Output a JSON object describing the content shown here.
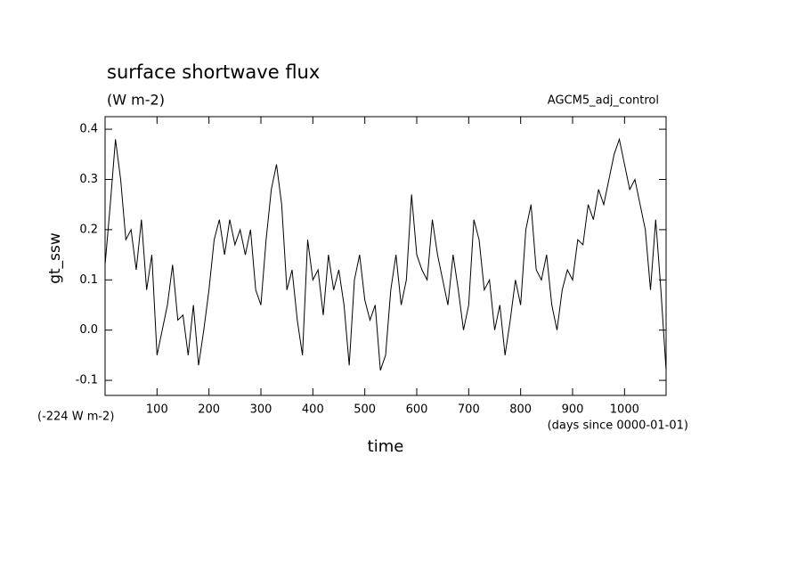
{
  "chart_data": {
    "type": "line",
    "title": "surface shortwave flux",
    "subtitle": "(W m-2)",
    "annotation": "AGCM5_adj_control",
    "offset_label": "(-224 W m-2)",
    "x_units": "(days since 0000-01-01)",
    "xlabel": "time",
    "ylabel": "gt_ssw",
    "xlim": [
      0,
      1080
    ],
    "ylim": [
      -0.13,
      0.425
    ],
    "xticks": [
      100,
      200,
      300,
      400,
      500,
      600,
      700,
      800,
      900,
      1000
    ],
    "yticks": [
      -0.1,
      {
        "value": 0,
        "label": "0.0"
      },
      0.1,
      0.2,
      0.3,
      0.4
    ],
    "x": [
      0,
      10,
      20,
      30,
      40,
      50,
      60,
      70,
      80,
      90,
      100,
      110,
      120,
      130,
      140,
      150,
      160,
      170,
      180,
      190,
      200,
      210,
      220,
      230,
      240,
      250,
      260,
      270,
      280,
      290,
      300,
      310,
      320,
      330,
      340,
      350,
      360,
      370,
      380,
      390,
      400,
      410,
      420,
      430,
      440,
      450,
      460,
      470,
      480,
      490,
      500,
      510,
      520,
      530,
      540,
      550,
      560,
      570,
      580,
      590,
      600,
      610,
      620,
      630,
      640,
      650,
      660,
      670,
      680,
      690,
      700,
      710,
      720,
      730,
      740,
      750,
      760,
      770,
      780,
      790,
      800,
      810,
      820,
      830,
      840,
      850,
      860,
      870,
      880,
      890,
      900,
      910,
      920,
      930,
      940,
      950,
      960,
      970,
      980,
      990,
      1000,
      1010,
      1020,
      1030,
      1040,
      1050,
      1060,
      1070,
      1080
    ],
    "series": [
      {
        "name": "gt_ssw",
        "color": "#000000",
        "values": [
          0.13,
          0.25,
          0.38,
          0.3,
          0.18,
          0.2,
          0.12,
          0.22,
          0.08,
          0.15,
          -0.05,
          0.0,
          0.05,
          0.13,
          0.02,
          0.03,
          -0.05,
          0.05,
          -0.07,
          0.0,
          0.08,
          0.18,
          0.22,
          0.15,
          0.22,
          0.17,
          0.2,
          0.15,
          0.2,
          0.08,
          0.05,
          0.18,
          0.28,
          0.33,
          0.25,
          0.08,
          0.12,
          0.02,
          -0.05,
          0.18,
          0.1,
          0.12,
          0.03,
          0.15,
          0.08,
          0.12,
          0.05,
          -0.07,
          0.1,
          0.15,
          0.06,
          0.02,
          0.05,
          -0.08,
          -0.05,
          0.08,
          0.15,
          0.05,
          0.1,
          0.27,
          0.15,
          0.12,
          0.1,
          0.22,
          0.15,
          0.1,
          0.05,
          0.15,
          0.08,
          0.0,
          0.05,
          0.22,
          0.18,
          0.08,
          0.1,
          0.0,
          0.05,
          -0.05,
          0.02,
          0.1,
          0.05,
          0.2,
          0.25,
          0.12,
          0.1,
          0.15,
          0.05,
          0.0,
          0.08,
          0.12,
          0.1,
          0.18,
          0.17,
          0.25,
          0.22,
          0.28,
          0.25,
          0.3,
          0.35,
          0.38,
          0.33,
          0.28,
          0.3,
          0.25,
          0.2,
          0.08,
          0.22,
          0.08,
          -0.08
        ]
      }
    ]
  }
}
